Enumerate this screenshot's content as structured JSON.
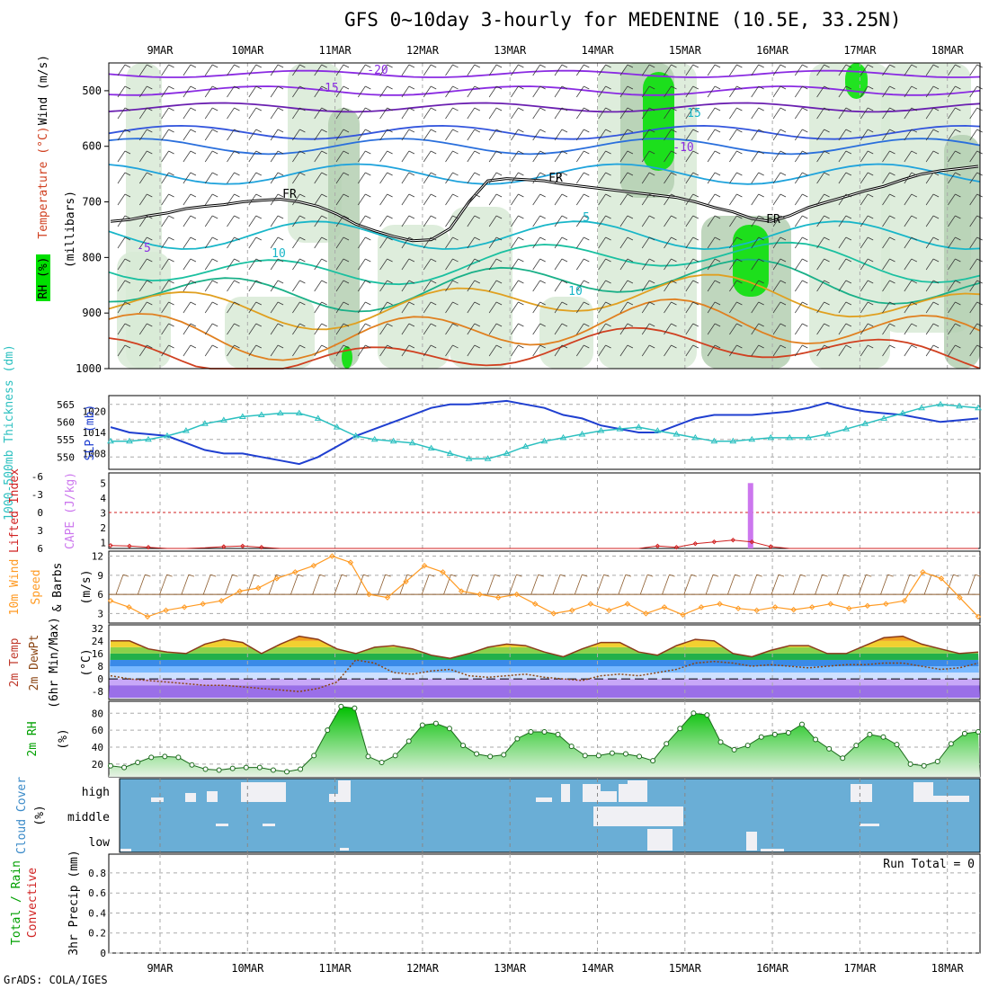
{
  "title": "GFS 0~10day 3-hourly for MEDENINE (10.5E, 33.25N)",
  "footer": "GrADS: COLA/IGES",
  "colors": {
    "rh_green": "#00e000",
    "rh_light": "#d8ead6",
    "rh_mid": "#b4cfb2",
    "slp_line": "#1f3fd0",
    "thickness_line": "#2cc0c0",
    "cape_bar": "#cc77ee",
    "lifted_line": "#d02020",
    "wind_speed": "#ff9a22",
    "wind_barb": "#8b5a2b",
    "cloud_bg": "#6aaed6",
    "cloud_patch": "#f0f0f4",
    "rh2m_green": "#00c000",
    "dewpt": "#8b4513",
    "temp_warm": "#ff8c00",
    "temp_fill": "#9ad14b"
  },
  "axis": {
    "date_ticks": [
      "9MAR",
      "10MAR",
      "11MAR",
      "12MAR",
      "13MAR",
      "14MAR",
      "15MAR",
      "16MAR",
      "17MAR",
      "18MAR"
    ]
  },
  "chart_data": [
    {
      "panel": "upper_air",
      "type": "contour",
      "ylabel_rh": "RH (%)",
      "ylabel_temp": "Temperature (°C)",
      "ylabel_wind": "Wind (m/s)",
      "ylabel_unit": "(millibars)",
      "y_ticks": [
        500,
        600,
        700,
        800,
        900,
        1000
      ],
      "contour_labels": [
        {
          "text": "-20",
          "x": "9MAR+2.6",
          "y": 475
        },
        {
          "text": "-15",
          "x": "9MAR+1.9",
          "y": 495
        },
        {
          "text": "15",
          "x": "14MAR+1.05",
          "y": 540
        },
        {
          "text": "-10",
          "x": "14MAR+0.95",
          "y": 600
        },
        {
          "text": "FR",
          "x": "10MAR+0.5",
          "y": 690
        },
        {
          "text": "FR",
          "x": "13MAR+0.5",
          "y": 660
        },
        {
          "text": "FR",
          "x": "15MAR+1.0",
          "y": 740
        },
        {
          "text": "-5",
          "x": "8MAR+1.3",
          "y": 780
        },
        {
          "text": "5",
          "x": "13MAR+0.9",
          "y": 745
        },
        {
          "text": "10",
          "x": "10MAR+0.4",
          "y": 790
        },
        {
          "text": "10",
          "x": "13MAR+0.7",
          "y": 860
        }
      ],
      "freezing_level_mb": [
        735,
        732,
        725,
        720,
        712,
        708,
        705,
        700,
        697,
        695,
        700,
        708,
        722,
        740,
        752,
        762,
        770,
        768,
        748,
        700,
        662,
        658,
        660,
        662,
        668,
        672,
        676,
        680,
        684,
        688,
        692,
        700,
        710,
        718,
        730,
        735,
        725,
        710,
        700,
        690,
        680,
        672,
        660,
        650,
        644,
        640,
        636
      ]
    },
    {
      "panel": "thickness_slp",
      "type": "line",
      "ylabel_left": "1000-500mb Thickness (dm)",
      "ylabel_right": "SLP (mb)",
      "left_ticks": [
        550,
        555,
        560,
        565
      ],
      "right_ticks": [
        1008,
        1014,
        1020
      ],
      "series": [
        {
          "name": "SLP",
          "units": "mb",
          "values": [
            1015.5,
            1014,
            1013.5,
            1013,
            1011,
            1009,
            1008,
            1008,
            1007,
            1006,
            1005,
            1007,
            1010,
            1013,
            1015,
            1017,
            1019,
            1021,
            1022,
            1022,
            1022.5,
            1023,
            1022,
            1021,
            1019,
            1018,
            1016,
            1015,
            1014,
            1014,
            1016,
            1018,
            1019,
            1019,
            1019,
            1019.5,
            1020,
            1021,
            1022.5,
            1021,
            1020,
            1019.5,
            1019,
            1018,
            1017,
            1017.5,
            1018
          ]
        },
        {
          "name": "1000-500mb Thickness",
          "units": "dm",
          "values": [
            554.5,
            554.5,
            555,
            556,
            557.5,
            559.5,
            560.5,
            561.5,
            562,
            562.5,
            562.5,
            561,
            558.5,
            556,
            555,
            554.5,
            554,
            552.5,
            551,
            549.5,
            549.5,
            551,
            553,
            554.5,
            555.5,
            556.5,
            557.5,
            558,
            558.5,
            557.5,
            556.5,
            555.5,
            554.5,
            554.5,
            555,
            555.5,
            555.5,
            555.5,
            556.5,
            558,
            559.5,
            561,
            562.5,
            564,
            565,
            564.5,
            564
          ]
        }
      ]
    },
    {
      "panel": "cape_lifted",
      "type": "line",
      "ylabel_left": "Lifted Index",
      "ylabel_right": "CAPE (J/kg)",
      "left_ticks": [
        -6,
        -3,
        0,
        3,
        6
      ],
      "right_ticks": [
        1,
        2,
        3,
        4,
        5
      ],
      "cape_bar": {
        "x": "15MAR+0.75",
        "value": 5
      },
      "lifted_index": [
        5.5,
        5.6,
        5.8,
        6,
        6,
        5.9,
        5.7,
        5.6,
        5.8,
        6,
        6,
        6,
        6,
        6,
        6,
        6,
        6,
        6,
        6,
        6,
        6,
        6,
        6,
        6,
        6,
        6,
        6,
        6,
        6,
        5.6,
        5.8,
        5.2,
        4.9,
        4.6,
        4.9,
        5.7,
        6,
        6,
        6,
        6,
        6,
        6,
        6,
        6,
        6,
        6,
        6
      ]
    },
    {
      "panel": "wind10m",
      "type": "line",
      "ylabel": "10m Wind Speed & Barbs (m/s)",
      "y_ticks": [
        3,
        6,
        9,
        12
      ],
      "values": [
        5,
        4,
        2.5,
        3.5,
        4,
        4.5,
        5,
        6.5,
        7,
        8.5,
        9.5,
        10.5,
        12,
        11,
        6,
        5.5,
        8,
        10.5,
        9.5,
        6.5,
        6,
        5.5,
        6,
        4.5,
        3,
        3.5,
        4.5,
        3.5,
        4.5,
        3,
        4,
        2.8,
        4,
        4.5,
        3.8,
        3.5,
        4,
        3.6,
        4,
        4.5,
        3.8,
        4.2,
        4.5,
        5,
        9.5,
        8.5,
        5.5,
        2.5
      ]
    },
    {
      "panel": "temp2m",
      "type": "area",
      "ylabel": "2m Temp 2m DewPt (6hr Min/Max) (°C)",
      "y_ticks": [
        -8,
        0,
        8,
        16,
        24,
        32
      ],
      "temp": [
        24,
        24,
        19,
        17,
        16,
        22,
        25,
        23,
        16,
        22,
        27,
        25,
        19,
        16,
        20,
        21,
        19,
        15,
        13,
        16,
        20,
        22,
        21,
        17,
        14,
        19,
        23,
        23,
        17,
        15,
        21,
        25,
        24,
        16,
        14,
        18,
        21,
        21,
        16,
        16,
        21,
        26,
        27,
        22,
        19,
        16,
        17
      ],
      "dewpt": [
        2,
        0,
        -1,
        -2,
        -3,
        -4,
        -4,
        -5,
        -6,
        -7,
        -8,
        -6,
        -2,
        12,
        10,
        4,
        3,
        5,
        6,
        2,
        1,
        2,
        3,
        1,
        0,
        -1,
        2,
        3,
        2,
        4,
        6,
        10,
        11,
        10,
        8,
        9,
        8,
        7,
        8,
        9,
        9,
        10,
        10,
        8,
        6,
        7,
        10
      ]
    },
    {
      "panel": "rh2m",
      "type": "area",
      "ylabel": "2m RH (%)",
      "y_ticks": [
        20,
        40,
        60,
        80
      ],
      "values": [
        18,
        16,
        22,
        28,
        29,
        28,
        19,
        14,
        13,
        15,
        16,
        16,
        13,
        11,
        14,
        30,
        60,
        88,
        86,
        29,
        22,
        30,
        47,
        66,
        68,
        62,
        42,
        32,
        29,
        31,
        50,
        58,
        58,
        55,
        41,
        30,
        30,
        33,
        32,
        29,
        24,
        44,
        62,
        80,
        78,
        46,
        37,
        42,
        52,
        55,
        57,
        67,
        49,
        38,
        27,
        42,
        55,
        52,
        43,
        20,
        18,
        23,
        44,
        56,
        58
      ]
    },
    {
      "panel": "cloud_cover",
      "type": "heatmap",
      "ylabel": "Cloud Cover (%)",
      "levels": [
        "high",
        "middle",
        "low"
      ]
    },
    {
      "panel": "precip",
      "type": "bar",
      "ylabel_left": "Total / Rain Convective",
      "ylabel_right": "3hr Precip (mm)",
      "y_ticks": [
        0,
        0.2,
        0.4,
        0.6,
        0.8
      ],
      "annotation": "Run Total = 0",
      "values": []
    }
  ]
}
